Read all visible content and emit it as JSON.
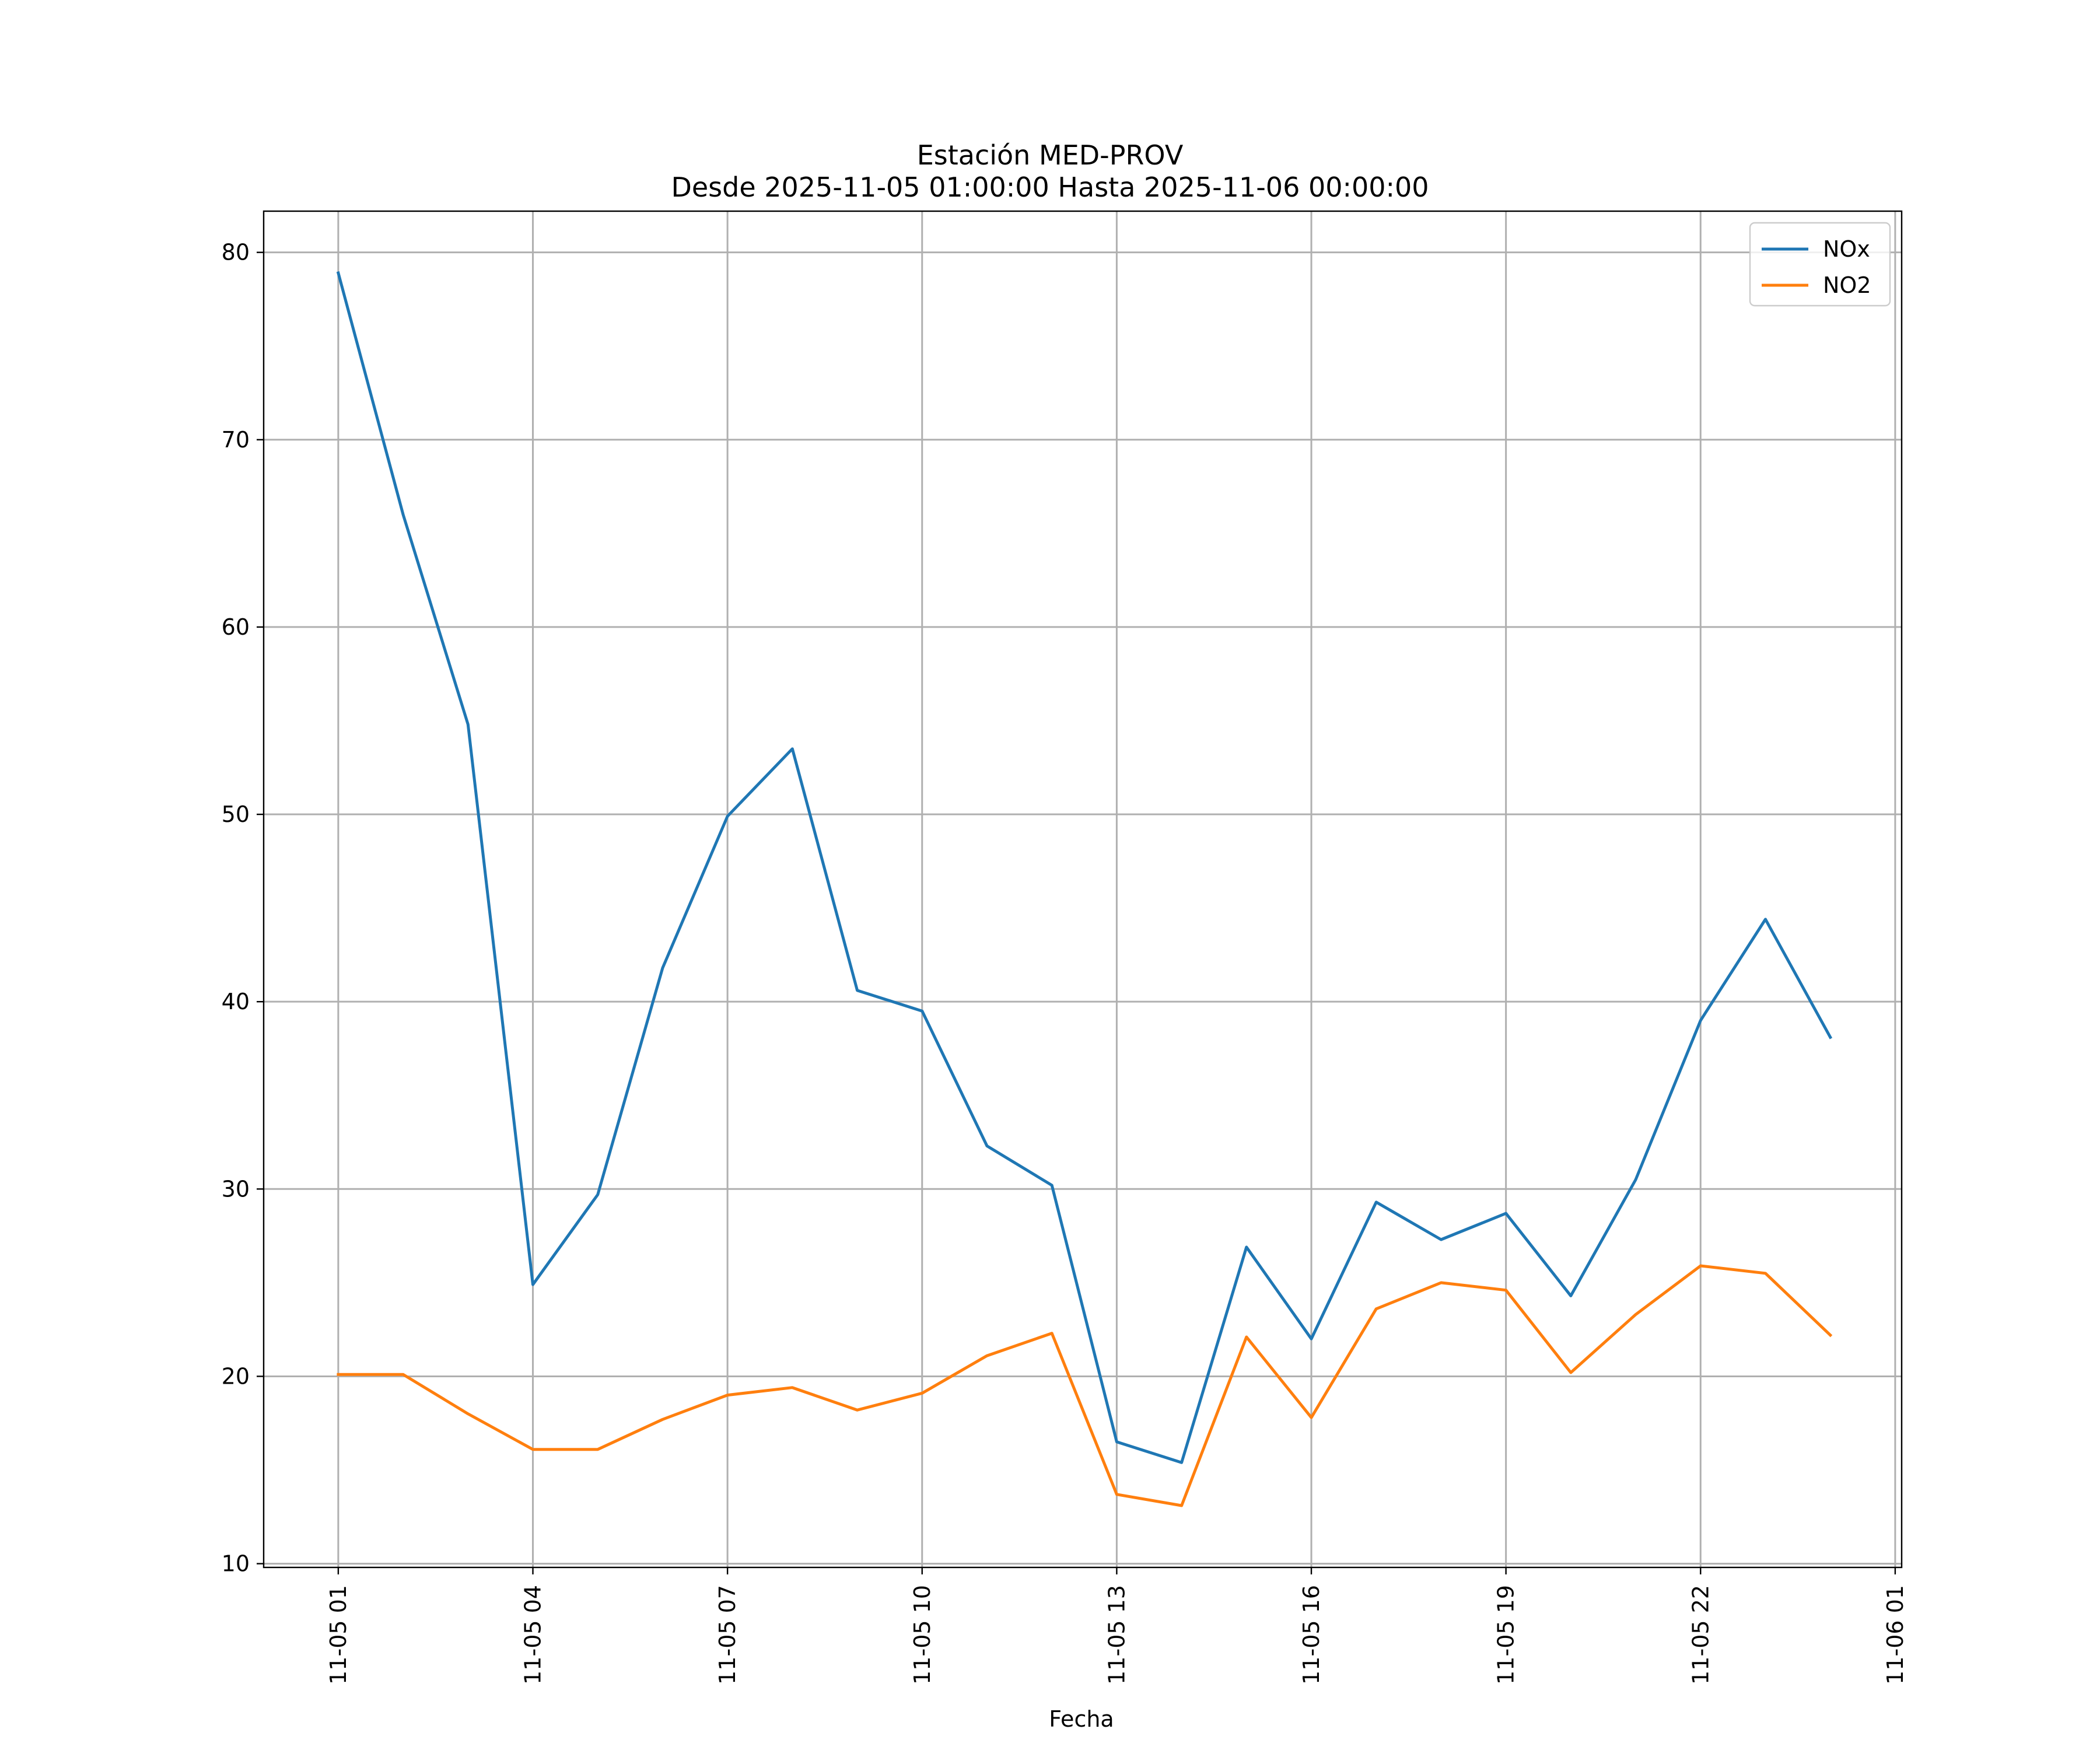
{
  "chart_data": {
    "type": "line",
    "title": "Estación MED-PROV",
    "subtitle": "Desde 2025-11-05 01:00:00 Hasta 2025-11-06 00:00:00",
    "xlabel": "Fecha",
    "ylabel": "",
    "x": [
      "2025-11-05 01:00",
      "2025-11-05 02:00",
      "2025-11-05 03:00",
      "2025-11-05 04:00",
      "2025-11-05 05:00",
      "2025-11-05 06:00",
      "2025-11-05 07:00",
      "2025-11-05 08:00",
      "2025-11-05 09:00",
      "2025-11-05 10:00",
      "2025-11-05 11:00",
      "2025-11-05 12:00",
      "2025-11-05 13:00",
      "2025-11-05 14:00",
      "2025-11-05 15:00",
      "2025-11-05 16:00",
      "2025-11-05 17:00",
      "2025-11-05 18:00",
      "2025-11-05 19:00",
      "2025-11-05 20:00",
      "2025-11-05 21:00",
      "2025-11-05 22:00",
      "2025-11-05 23:00",
      "2025-11-06 00:00"
    ],
    "x_hours": [
      1,
      2,
      3,
      4,
      5,
      6,
      7,
      8,
      9,
      10,
      11,
      12,
      13,
      14,
      15,
      16,
      17,
      18,
      19,
      20,
      21,
      22,
      23,
      24
    ],
    "xlim": [
      -0.15,
      25.1
    ],
    "ylim": [
      9.8,
      82.2
    ],
    "xticks": [
      {
        "hour": 1,
        "label": "11-05 01"
      },
      {
        "hour": 4,
        "label": "11-05 04"
      },
      {
        "hour": 7,
        "label": "11-05 07"
      },
      {
        "hour": 10,
        "label": "11-05 10"
      },
      {
        "hour": 13,
        "label": "11-05 13"
      },
      {
        "hour": 16,
        "label": "11-05 16"
      },
      {
        "hour": 19,
        "label": "11-05 19"
      },
      {
        "hour": 22,
        "label": "11-05 22"
      },
      {
        "hour": 25,
        "label": "11-06 01"
      }
    ],
    "yticks": [
      {
        "value": 10,
        "label": "10"
      },
      {
        "value": 20,
        "label": "20"
      },
      {
        "value": 30,
        "label": "30"
      },
      {
        "value": 40,
        "label": "40"
      },
      {
        "value": 50,
        "label": "50"
      },
      {
        "value": 60,
        "label": "60"
      },
      {
        "value": 70,
        "label": "70"
      },
      {
        "value": 80,
        "label": "80"
      }
    ],
    "grid": true,
    "legend_position": "top-right",
    "series": [
      {
        "name": "NOx",
        "color": "#1f77b4",
        "values": [
          78.9,
          66.0,
          54.8,
          24.9,
          29.7,
          41.8,
          49.9,
          53.5,
          40.6,
          39.5,
          32.3,
          30.2,
          16.5,
          15.4,
          26.9,
          22.0,
          29.3,
          27.3,
          28.7,
          24.3,
          30.5,
          39.0,
          44.4,
          38.1
        ]
      },
      {
        "name": "NO2",
        "color": "#ff7f0e",
        "values": [
          20.1,
          20.1,
          18.0,
          16.1,
          16.1,
          17.7,
          19.0,
          19.4,
          18.2,
          19.1,
          21.1,
          22.3,
          13.7,
          13.1,
          22.1,
          17.8,
          23.6,
          25.0,
          24.6,
          20.2,
          23.3,
          25.9,
          25.5,
          22.2
        ]
      }
    ]
  }
}
